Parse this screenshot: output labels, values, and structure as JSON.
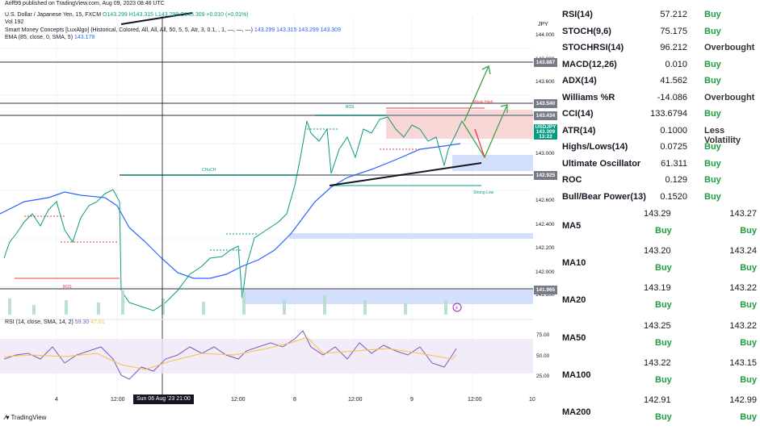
{
  "chart": {
    "publisher": "Ariff99 published on TradingView.com, Aug 09, 2023 08:46 UTC",
    "symbol_line": "U.S. Dollar / Japanese Yen, 15, FXCM",
    "ohlc": "O143.299 H143.315 L143.299 C143.309 +0.010 (+0.01%)",
    "volume": "Vol 192",
    "smc_line": "Smart Money Concepts [LuxAlgo] (Historical, Colored, All, All, All, 50, 5, 5, Atr, 3, 0.1, , 1, —, —, —)",
    "smc_values": "143.299 143.315 143.299 143.309",
    "ema_line": "EMA (85, close, 0, SMA, 5)",
    "ema_value": "143.178",
    "currency": "JPY",
    "price_ticks": [
      "144.000",
      "143.800",
      "143.600",
      "143.200",
      "143.000",
      "142.800",
      "142.600",
      "142.400",
      "142.200",
      "142.000",
      "141.800"
    ],
    "price_tags": [
      {
        "label": "143.887",
        "color": "#787b86"
      },
      {
        "label": "143.540",
        "color": "#787b86"
      },
      {
        "label": "143.434",
        "color": "#787b86"
      },
      {
        "label": "USDJPY",
        "color": "#089981"
      },
      {
        "label": "143.309",
        "color": "#089981"
      },
      {
        "label": "13:22",
        "color": "#089981"
      },
      {
        "label": "142.925",
        "color": "#787b86"
      },
      {
        "label": "141.965",
        "color": "#787b86"
      }
    ],
    "rsi_legend": "RSI (14, close, SMA, 14, 2)",
    "rsi_v1": "59.30",
    "rsi_v2": "47.61",
    "rsi_ticks": [
      "75.00",
      "50.00",
      "25.00"
    ],
    "time_ticks": [
      "4",
      "12:00",
      "12:00",
      "8",
      "12:00",
      "9",
      "12:00",
      "10"
    ],
    "crosshair_time": "Sun 06 Aug '23  21:00",
    "brand": "TradingView",
    "chart_labels": [
      "BOS",
      "CHoCH",
      "BOS",
      "BOS",
      "CHoCH",
      "Strong Low",
      "Weak High"
    ]
  },
  "indicators": [
    {
      "name": "RSI(14)",
      "value": "57.212",
      "action": "Buy"
    },
    {
      "name": "STOCH(9,6)",
      "value": "75.175",
      "action": "Buy"
    },
    {
      "name": "STOCHRSI(14)",
      "value": "96.212",
      "action": "Overbought"
    },
    {
      "name": "MACD(12,26)",
      "value": "0.010",
      "action": "Buy"
    },
    {
      "name": "ADX(14)",
      "value": "41.562",
      "action": "Buy"
    },
    {
      "name": "Williams %R",
      "value": "-14.086",
      "action": "Overbought"
    },
    {
      "name": "CCI(14)",
      "value": "133.6794",
      "action": "Buy"
    },
    {
      "name": "ATR(14)",
      "value": "0.1000",
      "action": "Less Volatility"
    },
    {
      "name": "Highs/Lows(14)",
      "value": "0.0725",
      "action": "Buy"
    },
    {
      "name": "Ultimate Oscillator",
      "value": "61.311",
      "action": "Buy"
    },
    {
      "name": "ROC",
      "value": "0.129",
      "action": "Buy"
    },
    {
      "name": "Bull/Bear Power(13)",
      "value": "0.1520",
      "action": "Buy"
    }
  ],
  "moving_averages": [
    {
      "name": "MA5",
      "simple": "143.29",
      "exponential": "143.27",
      "simple_action": "Buy",
      "exp_action": "Buy"
    },
    {
      "name": "MA10",
      "simple": "143.20",
      "exponential": "143.24",
      "simple_action": "Buy",
      "exp_action": "Buy"
    },
    {
      "name": "MA20",
      "simple": "143.19",
      "exponential": "143.22",
      "simple_action": "Buy",
      "exp_action": "Buy"
    },
    {
      "name": "MA50",
      "simple": "143.25",
      "exponential": "143.22",
      "simple_action": "Buy",
      "exp_action": "Buy"
    },
    {
      "name": "MA100",
      "simple": "143.22",
      "exponential": "143.15",
      "simple_action": "Buy",
      "exp_action": "Buy"
    },
    {
      "name": "MA200",
      "simple": "142.91",
      "exponential": "142.99",
      "simple_action": "Buy",
      "exp_action": "Buy"
    }
  ]
}
